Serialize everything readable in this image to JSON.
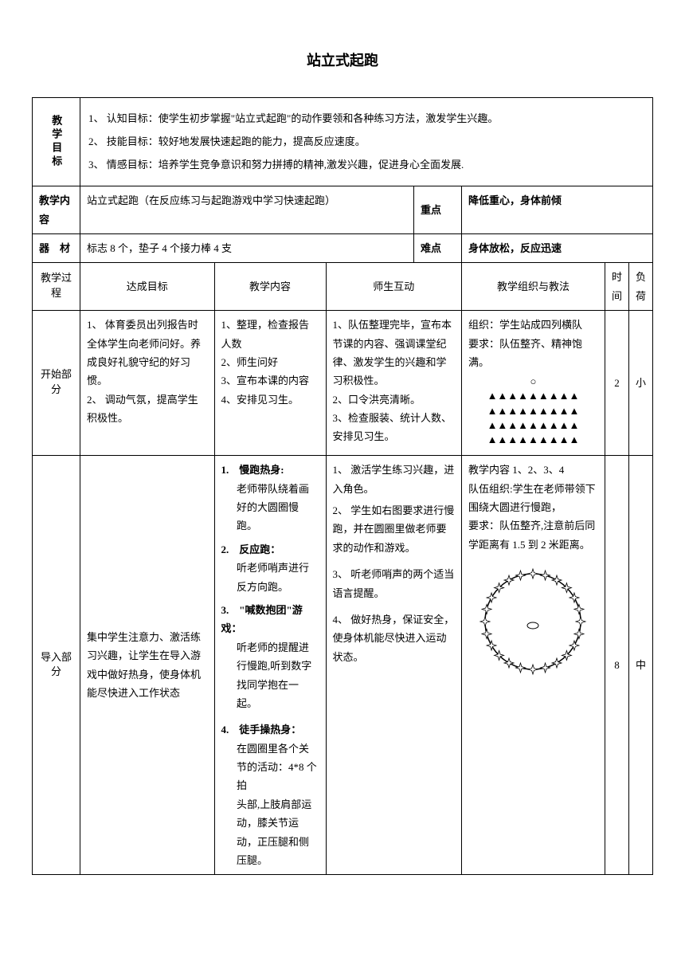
{
  "title": "站立式起跑",
  "goals_label": "教学目标",
  "goals": {
    "g1": "1、 认知目标：使学生初步掌握\"站立式起跑\"的动作要领和各种练习方法，激发学生兴趣。",
    "g2": "2、 技能目标：较好地发展快速起跑的能力，提高反应速度。",
    "g3": "3、 情感目标：培养学生竞争意识和努力拼搏的精神,激发兴趣，促进身心全面发展."
  },
  "content_label": "教学内容",
  "content_text": "站立式起跑（在反应练习与起跑游戏中学习快速起跑）",
  "keypoint_label": "重点",
  "keypoint_text": "降低重心，身体前倾",
  "equip_label": "器　材",
  "equip_text": "标志 8 个，垫子 4 个接力棒 4 支",
  "difficult_label": "难点",
  "difficult_text": "身体放松，反应迅速",
  "header": {
    "process": "教学过程",
    "goal": "达成目标",
    "content": "教学内容",
    "interact": "师生互动",
    "org": "教学组织与教法",
    "time": "时间",
    "load": "负荷"
  },
  "phase1": {
    "label": "开始部分",
    "goal_1": "1、 体育委员出列报告时全体学生向老师问好。养成良好礼貌守纪的好习惯。",
    "goal_2": "2、 调动气氛，提高学生积极性。",
    "content_1": "1、整理，检查报告人数",
    "content_2": "2、师生问好",
    "content_3": "3、宣布本课的内容",
    "content_4": "4、安排见习生。",
    "interact_1": "1、队伍整理完毕，宣布本节课的内容、强调课堂纪律、激发学生的兴趣和学习积极性。",
    "interact_2": "2、口令洪亮清晰。",
    "interact_3": "3、检查服装、统计人数、安排见习生。",
    "org_1": "组织：学生站成四列横队",
    "org_2": "要求：队伍整齐、精神饱满。",
    "teacher_mark": "○",
    "formation_row": "▲▲▲▲▲▲▲▲▲",
    "time": "2",
    "load": "小"
  },
  "phase2": {
    "label": "导入部分",
    "goal": "集中学生注意力、激活练习兴趣，让学生在导入游戏中做好热身，使身体机能尽快进入工作状态",
    "content_1_title": "1.　慢跑热身:",
    "content_1_body": "老师带队绕着画好的大圆圈慢跑。",
    "content_2_title": "2.　反应跑：",
    "content_2_body": "听老师哨声进行反方向跑。",
    "content_3_title": "3.　\"喊数抱团\"游戏：",
    "content_3_body": "听老师的提醒进行慢跑,听到数字找同学抱在一起。",
    "content_4_title": "4.　徒手操热身：",
    "content_4_body": "在圆圈里各个关节的活动：4*8 个拍",
    "content_4_body2": "头部,上肢肩部运动，膝关节运动，正压腿和侧压腿。",
    "interact_1": "1、 激活学生练习兴趣，进入角色。",
    "interact_2": "2、 学生如右图要求进行慢跑，并在圆圈里做老师要求的动作和游戏。",
    "interact_3": "3、 听老师哨声的两个适当语言提醒。",
    "interact_4": "4、 做好热身，保证安全，使身体机能尽快进入运动状态。",
    "org_title": "教学内容 1、2、3、4",
    "org_1": "队伍组织:学生在老师带领下围绕大圆进行慢跑，",
    "org_2": "要求：队伍整齐,注意前后同学距离有 1.5 到 2 米距离。",
    "time": "8",
    "load": "中"
  },
  "colors": {
    "text": "#000000",
    "border": "#000000",
    "background": "#ffffff"
  }
}
